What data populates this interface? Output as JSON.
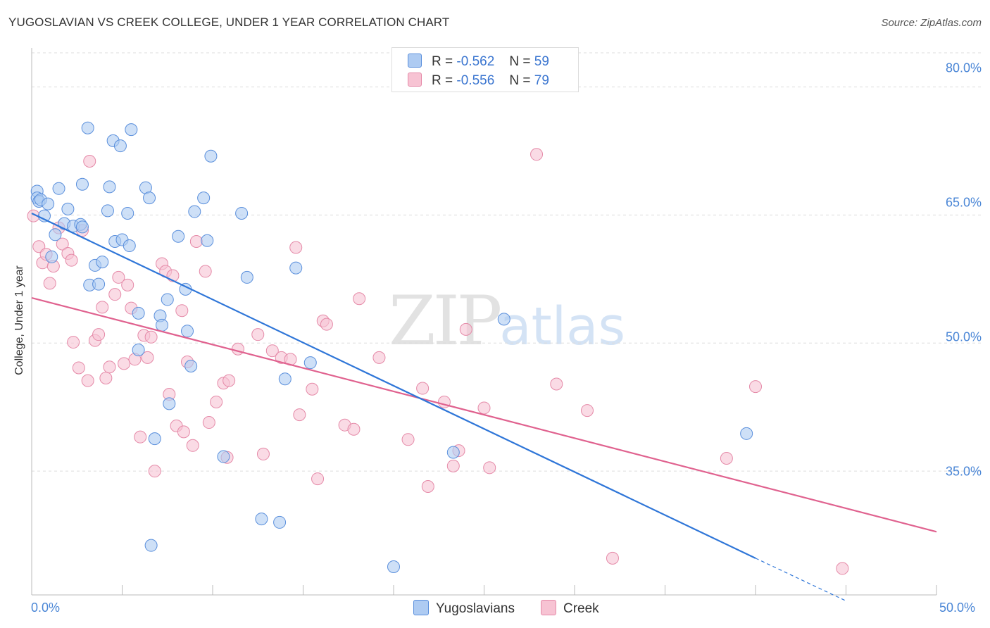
{
  "title": "YUGOSLAVIAN VS CREEK COLLEGE, UNDER 1 YEAR CORRELATION CHART",
  "source": "Source: ZipAtlas.com",
  "watermark": {
    "zip": "ZIP",
    "atlas": "atlas"
  },
  "legend": {
    "rows": [
      {
        "r_label": "R =",
        "r_value": "-0.562",
        "n_label": "N =",
        "n_value": "59"
      },
      {
        "r_label": "R =",
        "r_value": "-0.556",
        "n_label": "N =",
        "n_value": "79"
      }
    ],
    "bottom": [
      "Yugoslavians",
      "Creek"
    ]
  },
  "colors": {
    "blue_fill": "#aecbf2",
    "blue_stroke": "#5a8fdc",
    "blue_line": "#2f76d8",
    "pink_fill": "#f7c3d3",
    "pink_stroke": "#e58aa8",
    "pink_line": "#e0628f",
    "grid": "#dcdcdc",
    "axis_text": "#4a86d6"
  },
  "chart_data": {
    "type": "scatter",
    "title": "YUGOSLAVIAN VS CREEK COLLEGE, UNDER 1 YEAR CORRELATION CHART",
    "xlabel": "",
    "ylabel": "College, Under 1 year",
    "xlim": [
      0,
      50
    ],
    "ylim": [
      20.5,
      84
    ],
    "x_tick_labels": [
      "0.0%",
      "50.0%"
    ],
    "y_ticks": [
      35,
      50,
      65,
      80
    ],
    "y_tick_labels": [
      "35.0%",
      "50.0%",
      "65.0%",
      "80.0%"
    ],
    "series": [
      {
        "name": "Yugoslavians",
        "r": -0.562,
        "n": 59,
        "trend": {
          "x": [
            0,
            40
          ],
          "y": [
            65.2,
            24.8
          ]
        },
        "trend_extension": {
          "x": [
            40,
            45
          ],
          "y": [
            24.8,
            19.8
          ]
        },
        "points": [
          [
            0.3,
            67.8
          ],
          [
            0.3,
            67.0
          ],
          [
            0.4,
            66.6
          ],
          [
            0.5,
            66.8
          ],
          [
            0.7,
            64.9
          ],
          [
            0.9,
            66.3
          ],
          [
            1.1,
            60.1
          ],
          [
            1.3,
            62.7
          ],
          [
            1.5,
            68.1
          ],
          [
            1.8,
            64.0
          ],
          [
            2.0,
            65.7
          ],
          [
            2.3,
            63.7
          ],
          [
            2.7,
            63.9
          ],
          [
            2.8,
            63.6
          ],
          [
            2.8,
            68.6
          ],
          [
            3.1,
            75.2
          ],
          [
            3.2,
            56.8
          ],
          [
            3.5,
            59.1
          ],
          [
            3.7,
            56.9
          ],
          [
            3.9,
            59.5
          ],
          [
            4.2,
            65.5
          ],
          [
            4.3,
            68.3
          ],
          [
            4.5,
            73.7
          ],
          [
            4.6,
            61.9
          ],
          [
            4.9,
            73.1
          ],
          [
            5.0,
            62.1
          ],
          [
            5.3,
            65.2
          ],
          [
            5.4,
            61.4
          ],
          [
            5.5,
            75.0
          ],
          [
            5.9,
            53.5
          ],
          [
            5.9,
            49.2
          ],
          [
            6.3,
            68.2
          ],
          [
            6.5,
            67.0
          ],
          [
            6.6,
            26.3
          ],
          [
            6.8,
            38.8
          ],
          [
            7.1,
            53.2
          ],
          [
            7.2,
            52.1
          ],
          [
            7.5,
            55.1
          ],
          [
            7.6,
            42.9
          ],
          [
            8.1,
            62.5
          ],
          [
            8.5,
            56.3
          ],
          [
            8.6,
            51.4
          ],
          [
            8.8,
            47.3
          ],
          [
            9.0,
            65.4
          ],
          [
            9.5,
            67.0
          ],
          [
            9.7,
            62.0
          ],
          [
            9.9,
            71.9
          ],
          [
            10.6,
            36.7
          ],
          [
            11.6,
            65.2
          ],
          [
            11.9,
            57.7
          ],
          [
            12.7,
            29.4
          ],
          [
            13.7,
            29.0
          ],
          [
            14.0,
            45.8
          ],
          [
            14.6,
            58.8
          ],
          [
            15.4,
            47.7
          ],
          [
            20.0,
            23.8
          ],
          [
            23.3,
            37.2
          ],
          [
            26.1,
            52.8
          ],
          [
            39.5,
            39.4
          ]
        ]
      },
      {
        "name": "Creek",
        "r": -0.556,
        "n": 79,
        "trend": {
          "x": [
            0,
            50
          ],
          "y": [
            55.3,
            27.9
          ]
        },
        "points": [
          [
            0.1,
            64.9
          ],
          [
            0.4,
            61.3
          ],
          [
            0.6,
            59.4
          ],
          [
            0.8,
            60.4
          ],
          [
            1.0,
            57.0
          ],
          [
            1.2,
            59.0
          ],
          [
            1.5,
            63.5
          ],
          [
            1.7,
            61.6
          ],
          [
            2.0,
            60.5
          ],
          [
            2.2,
            59.7
          ],
          [
            2.3,
            50.1
          ],
          [
            2.6,
            47.1
          ],
          [
            2.8,
            63.2
          ],
          [
            3.1,
            45.6
          ],
          [
            3.2,
            71.3
          ],
          [
            3.5,
            50.3
          ],
          [
            3.7,
            51.0
          ],
          [
            3.9,
            54.2
          ],
          [
            4.1,
            45.9
          ],
          [
            4.3,
            47.2
          ],
          [
            4.6,
            55.7
          ],
          [
            4.8,
            57.7
          ],
          [
            5.1,
            47.6
          ],
          [
            5.3,
            56.8
          ],
          [
            5.5,
            54.1
          ],
          [
            5.7,
            48.1
          ],
          [
            6.0,
            39.0
          ],
          [
            6.2,
            50.9
          ],
          [
            6.4,
            48.3
          ],
          [
            6.6,
            50.7
          ],
          [
            6.8,
            35.0
          ],
          [
            7.2,
            59.3
          ],
          [
            7.4,
            58.4
          ],
          [
            7.6,
            44.0
          ],
          [
            7.8,
            57.9
          ],
          [
            8.0,
            40.3
          ],
          [
            8.3,
            53.8
          ],
          [
            8.4,
            39.6
          ],
          [
            8.6,
            47.8
          ],
          [
            8.9,
            38.0
          ],
          [
            9.1,
            61.9
          ],
          [
            9.6,
            58.4
          ],
          [
            9.8,
            40.7
          ],
          [
            10.2,
            43.1
          ],
          [
            10.6,
            45.3
          ],
          [
            10.8,
            36.6
          ],
          [
            10.9,
            45.6
          ],
          [
            11.4,
            49.3
          ],
          [
            12.5,
            51.0
          ],
          [
            12.8,
            37.0
          ],
          [
            13.3,
            49.1
          ],
          [
            13.8,
            48.3
          ],
          [
            14.3,
            48.1
          ],
          [
            14.6,
            61.2
          ],
          [
            14.8,
            41.6
          ],
          [
            15.5,
            44.6
          ],
          [
            15.8,
            34.1
          ],
          [
            16.1,
            52.6
          ],
          [
            16.3,
            52.2
          ],
          [
            17.3,
            40.4
          ],
          [
            17.8,
            39.9
          ],
          [
            18.1,
            55.2
          ],
          [
            19.2,
            48.3
          ],
          [
            20.8,
            38.7
          ],
          [
            21.6,
            44.7
          ],
          [
            21.9,
            33.2
          ],
          [
            22.8,
            43.1
          ],
          [
            23.3,
            35.6
          ],
          [
            23.6,
            37.4
          ],
          [
            24.0,
            51.6
          ],
          [
            25.0,
            42.4
          ],
          [
            25.3,
            35.4
          ],
          [
            27.9,
            72.1
          ],
          [
            29.0,
            45.2
          ],
          [
            30.7,
            42.1
          ],
          [
            32.1,
            24.8
          ],
          [
            38.4,
            36.5
          ],
          [
            40.0,
            44.9
          ],
          [
            44.8,
            23.6
          ]
        ]
      }
    ]
  }
}
